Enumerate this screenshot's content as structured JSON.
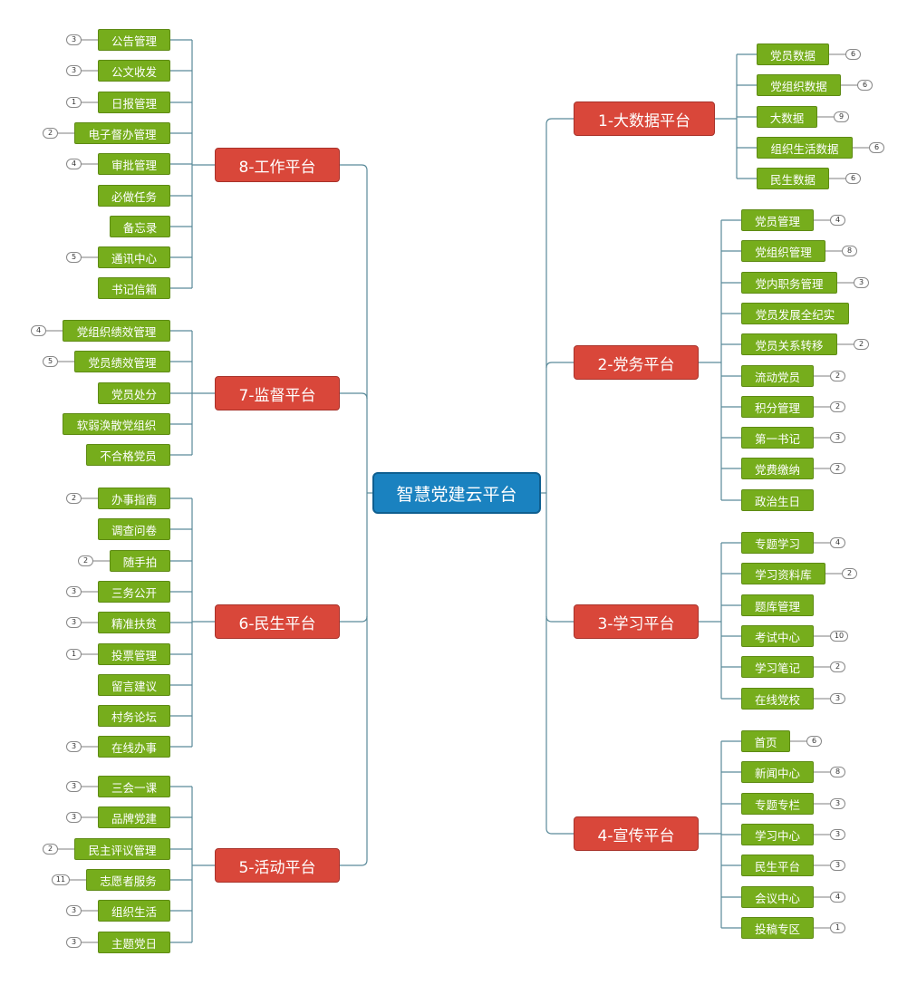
{
  "root": {
    "label": "智慧党建云平台"
  },
  "branches": [
    {
      "label": "1-大数据平台",
      "side": "right",
      "children": [
        {
          "label": "党员数据",
          "count": "6"
        },
        {
          "label": "党组织数据",
          "count": "6"
        },
        {
          "label": "大数据",
          "count": "9"
        },
        {
          "label": "组织生活数据",
          "count": "6"
        },
        {
          "label": "民生数据",
          "count": "6"
        }
      ]
    },
    {
      "label": "2-党务平台",
      "side": "right",
      "children": [
        {
          "label": "党员管理",
          "count": "4"
        },
        {
          "label": "党组织管理",
          "count": "8"
        },
        {
          "label": "党内职务管理",
          "count": "3"
        },
        {
          "label": "党员发展全纪实",
          "count": ""
        },
        {
          "label": "党员关系转移",
          "count": "2"
        },
        {
          "label": "流动党员",
          "count": "2"
        },
        {
          "label": "积分管理",
          "count": "2"
        },
        {
          "label": "第一书记",
          "count": "3"
        },
        {
          "label": "党费缴纳",
          "count": "2"
        },
        {
          "label": "政治生日",
          "count": ""
        }
      ]
    },
    {
      "label": "3-学习平台",
      "side": "right",
      "children": [
        {
          "label": "专题学习",
          "count": "4"
        },
        {
          "label": "学习资料库",
          "count": "2"
        },
        {
          "label": "题库管理",
          "count": ""
        },
        {
          "label": "考试中心",
          "count": "10"
        },
        {
          "label": "学习笔记",
          "count": "2"
        },
        {
          "label": "在线党校",
          "count": "3"
        }
      ]
    },
    {
      "label": "4-宣传平台",
      "side": "right",
      "children": [
        {
          "label": "首页",
          "count": "6"
        },
        {
          "label": "新闻中心",
          "count": "8"
        },
        {
          "label": "专题专栏",
          "count": "3"
        },
        {
          "label": "学习中心",
          "count": "3"
        },
        {
          "label": "民生平台",
          "count": "3"
        },
        {
          "label": "会议中心",
          "count": "4"
        },
        {
          "label": "投稿专区",
          "count": "1"
        }
      ]
    },
    {
      "label": "5-活动平台",
      "side": "left",
      "children": [
        {
          "label": "三会一课",
          "count": "3"
        },
        {
          "label": "品牌党建",
          "count": "3"
        },
        {
          "label": "民主评议管理",
          "count": "2"
        },
        {
          "label": "志愿者服务",
          "count": "11"
        },
        {
          "label": "组织生活",
          "count": "3"
        },
        {
          "label": "主题党日",
          "count": "3"
        }
      ]
    },
    {
      "label": "6-民生平台",
      "side": "left",
      "children": [
        {
          "label": "办事指南",
          "count": "2"
        },
        {
          "label": "调查问卷",
          "count": ""
        },
        {
          "label": "随手拍",
          "count": "2"
        },
        {
          "label": "三务公开",
          "count": "3"
        },
        {
          "label": "精准扶贫",
          "count": "3"
        },
        {
          "label": "投票管理",
          "count": "1"
        },
        {
          "label": "留言建议",
          "count": ""
        },
        {
          "label": "村务论坛",
          "count": ""
        },
        {
          "label": "在线办事",
          "count": "3"
        }
      ]
    },
    {
      "label": "7-监督平台",
      "side": "left",
      "children": [
        {
          "label": "党组织绩效管理",
          "count": "4"
        },
        {
          "label": "党员绩效管理",
          "count": "5"
        },
        {
          "label": "党员处分",
          "count": ""
        },
        {
          "label": "软弱涣散党组织",
          "count": ""
        },
        {
          "label": "不合格党员",
          "count": ""
        }
      ]
    },
    {
      "label": "8-工作平台",
      "side": "left",
      "children": [
        {
          "label": "公告管理",
          "count": "3"
        },
        {
          "label": "公文收发",
          "count": "3"
        },
        {
          "label": "日报管理",
          "count": "1"
        },
        {
          "label": "电子督办管理",
          "count": "2"
        },
        {
          "label": "审批管理",
          "count": "4"
        },
        {
          "label": "必做任务",
          "count": ""
        },
        {
          "label": "备忘录",
          "count": ""
        },
        {
          "label": "通讯中心",
          "count": "5"
        },
        {
          "label": "书记信箱",
          "count": ""
        }
      ]
    }
  ],
  "colors": {
    "center": "#1a82c0",
    "branch": "#d9473a",
    "leaf": "#76ad1c",
    "line": "#5a8a9a"
  }
}
